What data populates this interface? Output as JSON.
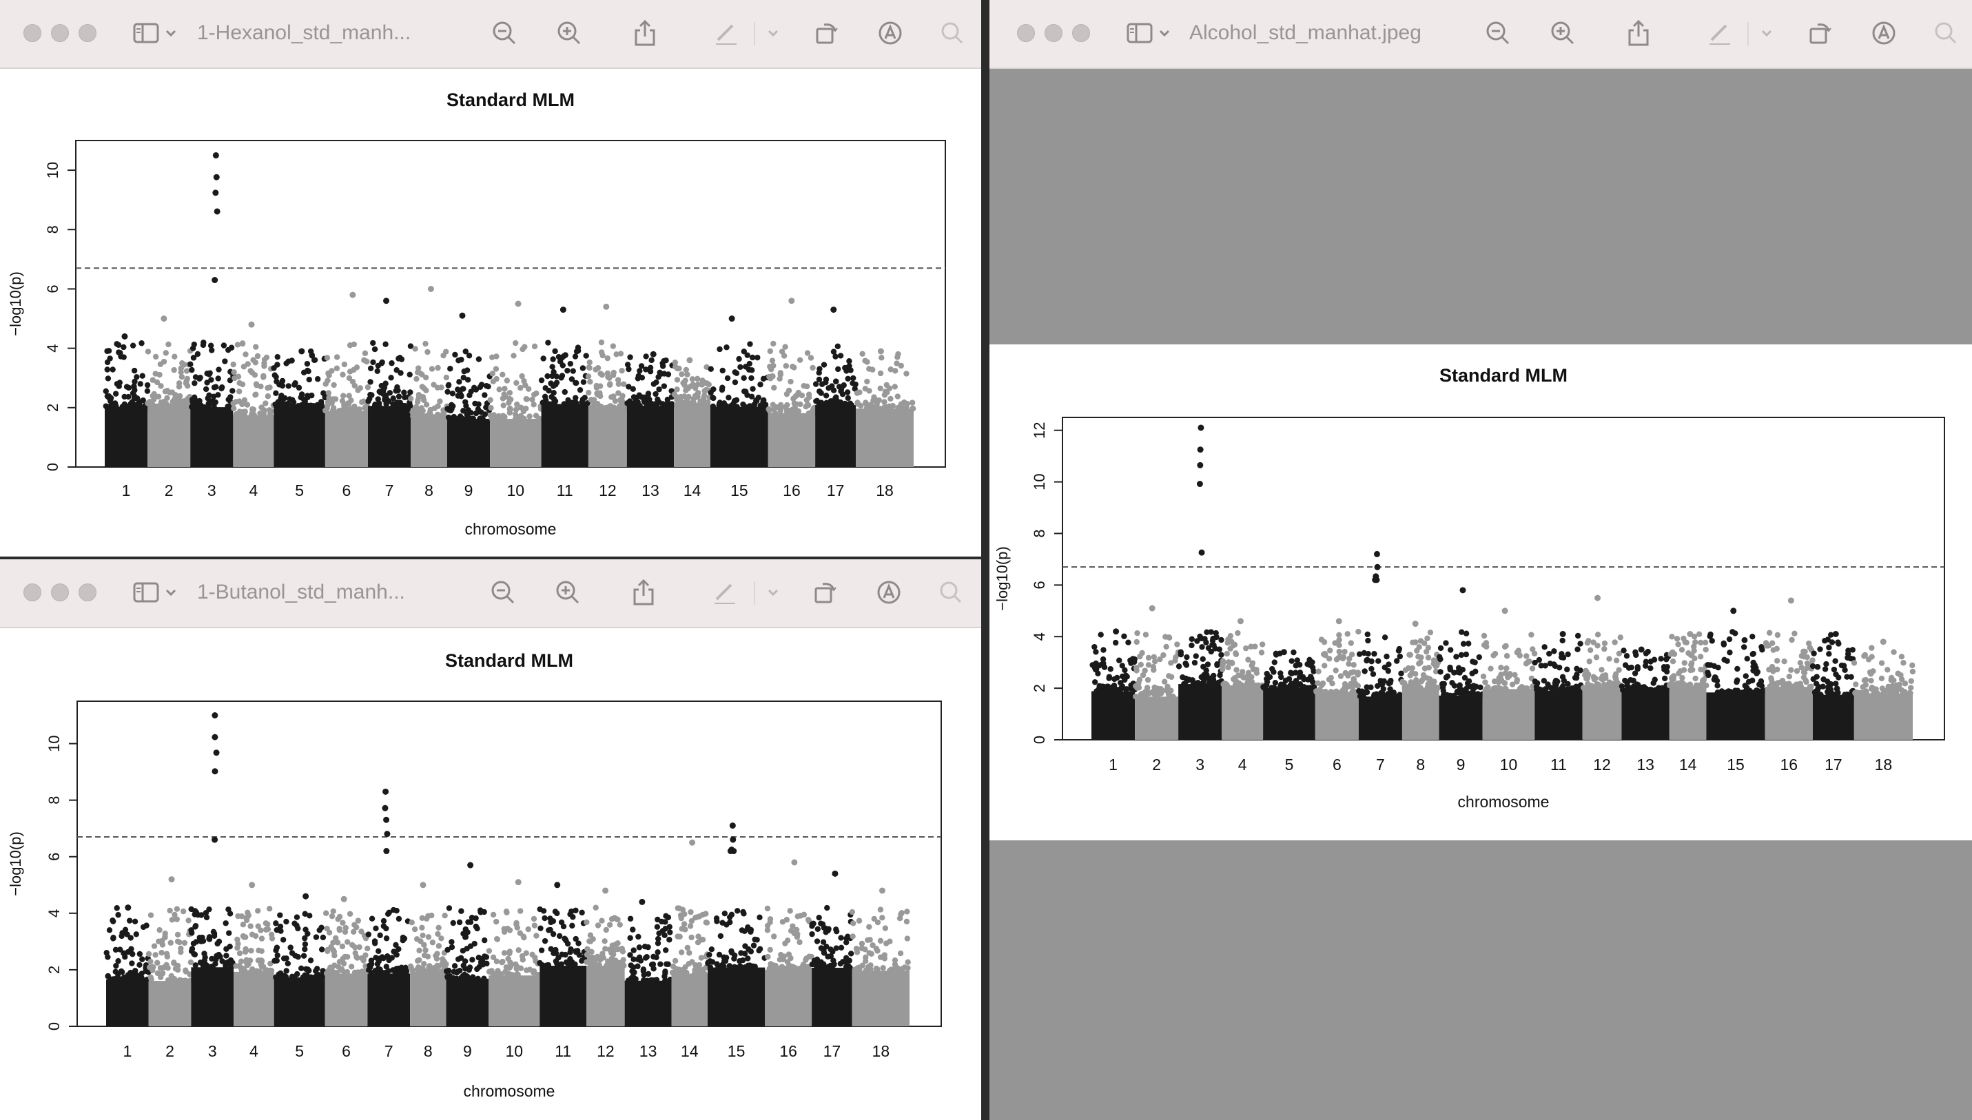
{
  "colors": {
    "titlebar_bg": "#efe9e9",
    "window_bg": "#ffffff",
    "viewer_backdrop": "#959595",
    "point_dark": "#1a1a1a",
    "point_light": "#999999",
    "threshold_line": "#555555"
  },
  "toolbar_icons": [
    "sidebar-icon",
    "chevron-down-icon",
    "zoom-out-icon",
    "zoom-in-icon",
    "share-icon",
    "markup-pen-icon",
    "chevron-down-icon",
    "rotate-icon",
    "annotate-icon",
    "search-icon"
  ],
  "windows": [
    {
      "id": "hexanol",
      "title": "1-Hexanol_std_manh...",
      "chart_data": {
        "type": "scatter",
        "title": "Standard MLM",
        "xlabel": "chromosome",
        "ylabel": "−log10(p)",
        "ylim": [
          0,
          11
        ],
        "yticks": [
          0,
          2,
          4,
          6,
          8,
          10
        ],
        "threshold": 6.7,
        "categories": [
          "1",
          "2",
          "3",
          "4",
          "5",
          "6",
          "7",
          "8",
          "9",
          "10",
          "11",
          "12",
          "13",
          "14",
          "15",
          "16",
          "17",
          "18"
        ],
        "max_by_chromosome": [
          4.4,
          5.0,
          10.5,
          4.8,
          3.9,
          5.8,
          5.6,
          6.0,
          5.1,
          5.5,
          5.3,
          5.4,
          3.8,
          3.6,
          5.0,
          5.6,
          5.3,
          3.9
        ]
      }
    },
    {
      "id": "butanol",
      "title": "1-Butanol_std_manh...",
      "chart_data": {
        "type": "scatter",
        "title": "Standard MLM",
        "xlabel": "chromosome",
        "ylabel": "−log10(p)",
        "ylim": [
          0,
          11.5
        ],
        "yticks": [
          0,
          2,
          4,
          6,
          8,
          10
        ],
        "threshold": 6.7,
        "categories": [
          "1",
          "2",
          "3",
          "4",
          "5",
          "6",
          "7",
          "8",
          "9",
          "10",
          "11",
          "12",
          "13",
          "14",
          "15",
          "16",
          "17",
          "18"
        ],
        "max_by_chromosome": [
          4.2,
          5.2,
          11.0,
          5.0,
          4.6,
          4.5,
          8.3,
          5.0,
          5.7,
          5.1,
          5.0,
          4.8,
          4.4,
          6.5,
          7.1,
          5.8,
          5.4,
          4.8
        ]
      }
    },
    {
      "id": "alcohol",
      "title": "Alcohol_std_manhat.jpeg",
      "chart_data": {
        "type": "scatter",
        "title": "Standard MLM",
        "xlabel": "chromosome",
        "ylabel": "−log10(p)",
        "ylim": [
          0,
          12.5
        ],
        "yticks": [
          0,
          2,
          4,
          6,
          8,
          10,
          12
        ],
        "threshold": 6.7,
        "categories": [
          "1",
          "2",
          "3",
          "4",
          "5",
          "6",
          "7",
          "8",
          "9",
          "10",
          "11",
          "12",
          "13",
          "14",
          "15",
          "16",
          "17",
          "18"
        ],
        "max_by_chromosome": [
          4.2,
          5.1,
          12.1,
          4.6,
          3.4,
          4.6,
          7.2,
          4.5,
          5.8,
          5.0,
          4.1,
          5.5,
          3.5,
          4.1,
          5.0,
          5.4,
          4.1,
          3.8
        ]
      }
    }
  ]
}
